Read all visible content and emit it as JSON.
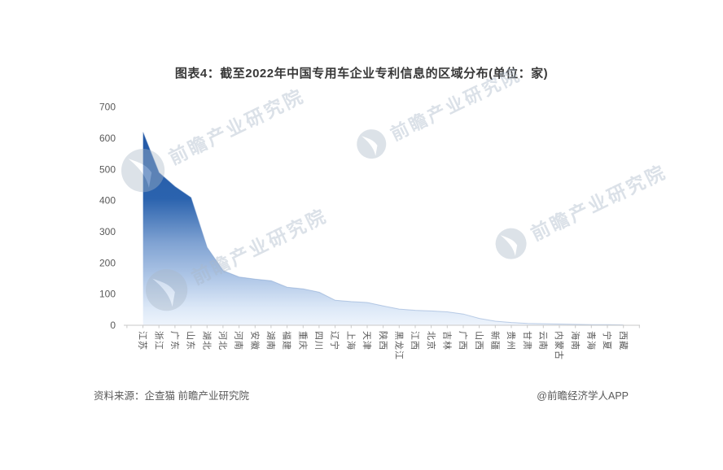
{
  "title": "图表4：截至2022年中国专用车企业专利信息的区域分布(单位：家)",
  "watermark": {
    "text": "前瞻产业研究院"
  },
  "footer": {
    "source": "资料来源：企查猫 前瞻产业研究院",
    "credit": "@前瞻经济学人APP"
  },
  "chart_data": {
    "type": "area",
    "title": "图表4：截至2022年中国专用车企业专利信息的区域分布(单位：家)",
    "xlabel": "",
    "ylabel": "",
    "unit": "家",
    "categories": [
      "江苏",
      "浙江",
      "广东",
      "山东",
      "湖北",
      "河北",
      "河南",
      "安徽",
      "湖南",
      "福建",
      "重庆",
      "四川",
      "辽宁",
      "上海",
      "天津",
      "陕西",
      "黑龙江",
      "江西",
      "北京",
      "吉林",
      "广西",
      "山西",
      "新疆",
      "贵州",
      "甘肃",
      "云南",
      "内蒙古",
      "海南",
      "青海",
      "宁夏",
      "西藏"
    ],
    "values": [
      620,
      490,
      445,
      410,
      250,
      175,
      155,
      148,
      143,
      122,
      117,
      106,
      80,
      76,
      73,
      62,
      52,
      48,
      46,
      43,
      36,
      22,
      13,
      9,
      6,
      5,
      4,
      3,
      2,
      2,
      1
    ],
    "ylim": [
      0,
      700
    ],
    "ytick_step": 100,
    "grid": false,
    "legend": "none",
    "axis_color": "#c9c9c9",
    "label_color": "#595959",
    "fill_stops": [
      [
        0,
        "#1f54a3"
      ],
      [
        0.42,
        "#2b63ae"
      ],
      [
        0.62,
        "#7fa2d2"
      ],
      [
        0.8,
        "#b5cbe9"
      ],
      [
        0.92,
        "#dce8f7"
      ],
      [
        1,
        "#eef4fc"
      ]
    ],
    "edge_color": "#7396c9"
  }
}
